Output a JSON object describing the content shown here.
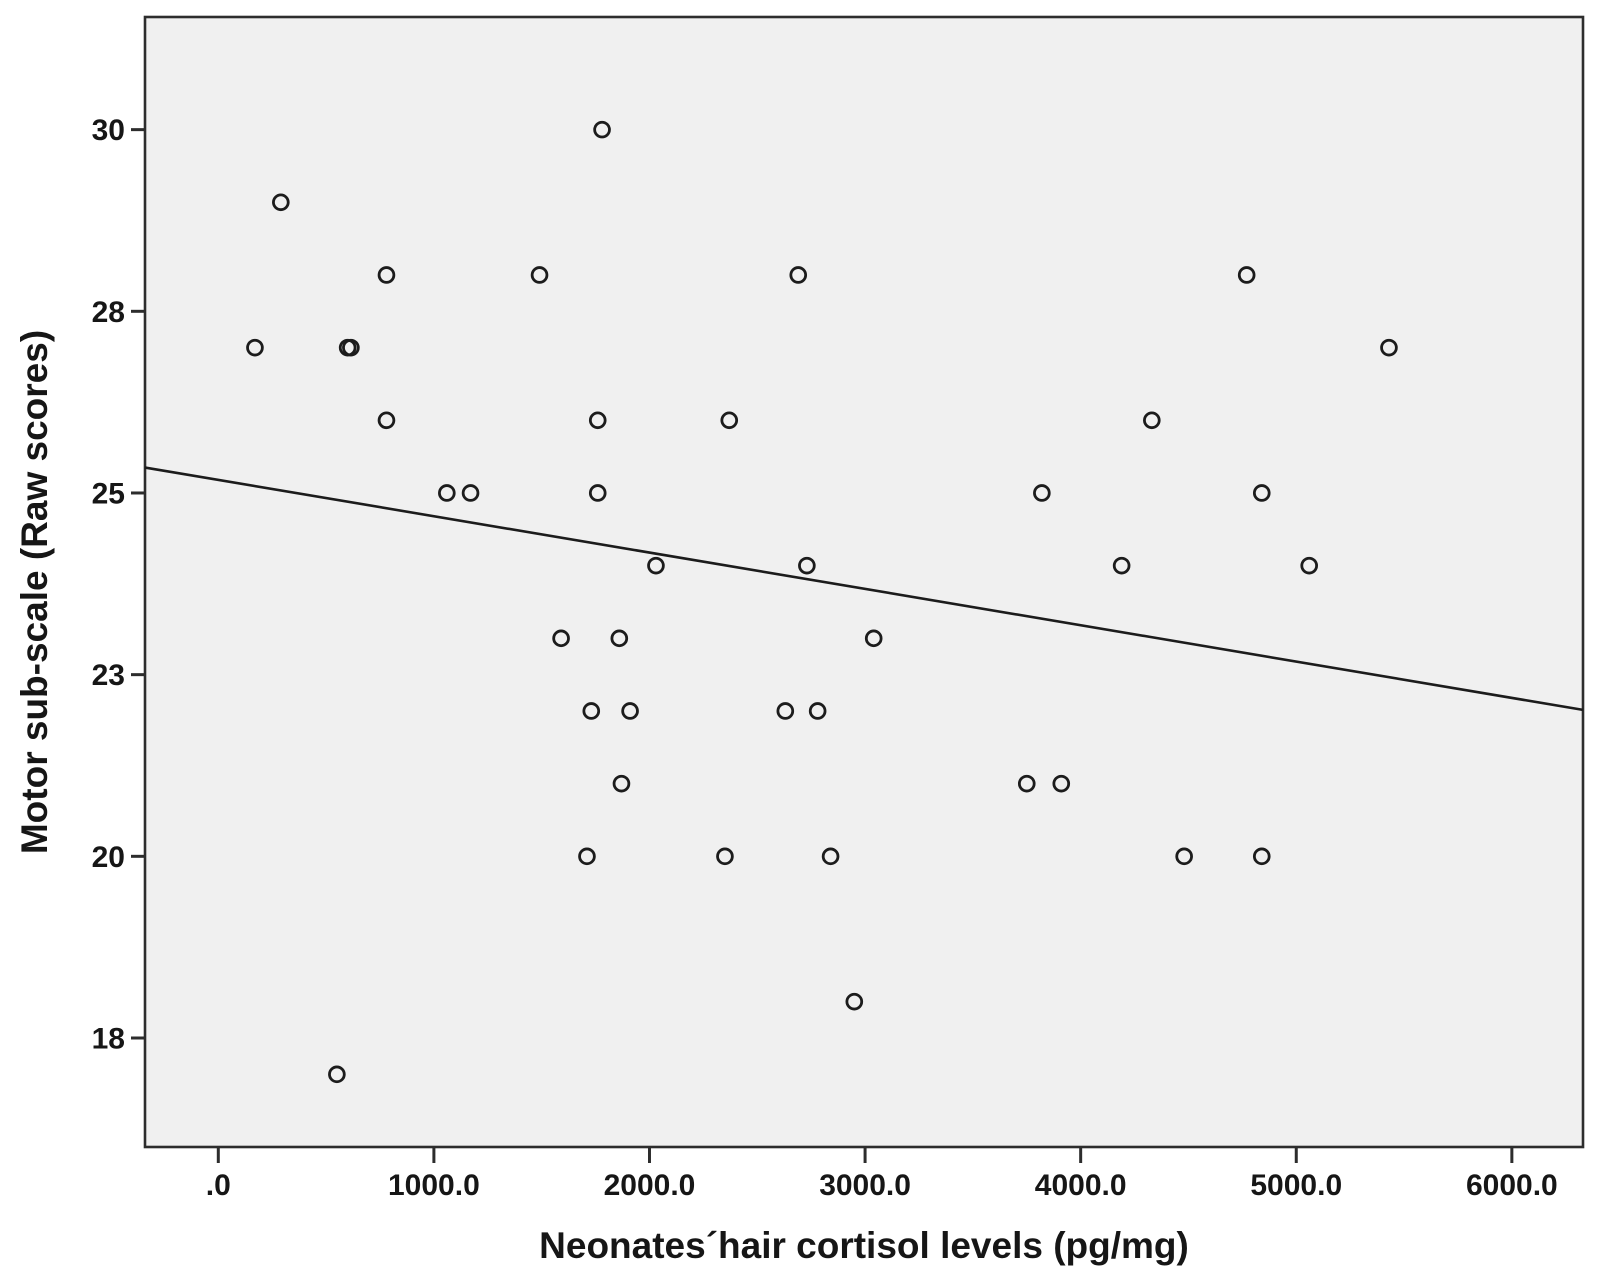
{
  "figure": {
    "background_color": "#ffffff",
    "plot_background_color": "#f0f0f0",
    "border_color": "#2d2d2d",
    "tick_color": "#2d2d2d",
    "text_color": "#161616",
    "point_stroke_color": "#1c1c1c",
    "fit_line_color": "#1c1c1c"
  },
  "chart_data": {
    "type": "scatter",
    "title": "",
    "xlabel": "Neonates´hair cortisol levels (pg/mg)",
    "ylabel": "Motor sub-scale (Raw scores)",
    "xlim": [
      -340,
      6330
    ],
    "ylim": [
      16.0,
      31.55
    ],
    "grid": false,
    "legend": false,
    "x_ticks": [
      {
        "label": ".0",
        "value": 0
      },
      {
        "label": "1000.0",
        "value": 1000
      },
      {
        "label": "2000.0",
        "value": 2000
      },
      {
        "label": "3000.0",
        "value": 3000
      },
      {
        "label": "4000.0",
        "value": 4000
      },
      {
        "label": "5000.0",
        "value": 5000
      },
      {
        "label": "6000.0",
        "value": 6000
      }
    ],
    "y_ticks": [
      {
        "label": "30",
        "value": 30
      },
      {
        "label": "28",
        "value": 27.5
      },
      {
        "label": "25",
        "value": 25
      },
      {
        "label": "23",
        "value": 22.5
      },
      {
        "label": "20",
        "value": 20
      },
      {
        "label": "18",
        "value": 17.5
      }
    ],
    "points": [
      {
        "x": 1780,
        "y": 30
      },
      {
        "x": 290,
        "y": 29
      },
      {
        "x": 780,
        "y": 28
      },
      {
        "x": 1490,
        "y": 28
      },
      {
        "x": 2690,
        "y": 28
      },
      {
        "x": 4770,
        "y": 28
      },
      {
        "x": 170,
        "y": 27
      },
      {
        "x": 600,
        "y": 27
      },
      {
        "x": 615,
        "y": 27
      },
      {
        "x": 5430,
        "y": 27
      },
      {
        "x": 780,
        "y": 26
      },
      {
        "x": 1760,
        "y": 26
      },
      {
        "x": 2370,
        "y": 26
      },
      {
        "x": 4330,
        "y": 26
      },
      {
        "x": 1060,
        "y": 25
      },
      {
        "x": 1170,
        "y": 25
      },
      {
        "x": 1760,
        "y": 25
      },
      {
        "x": 3820,
        "y": 25
      },
      {
        "x": 4840,
        "y": 25
      },
      {
        "x": 2030,
        "y": 24
      },
      {
        "x": 2730,
        "y": 24
      },
      {
        "x": 4190,
        "y": 24
      },
      {
        "x": 5060,
        "y": 24
      },
      {
        "x": 1590,
        "y": 23
      },
      {
        "x": 1860,
        "y": 23
      },
      {
        "x": 3040,
        "y": 23
      },
      {
        "x": 1730,
        "y": 22
      },
      {
        "x": 1910,
        "y": 22
      },
      {
        "x": 2630,
        "y": 22
      },
      {
        "x": 2780,
        "y": 22
      },
      {
        "x": 1870,
        "y": 21
      },
      {
        "x": 3750,
        "y": 21
      },
      {
        "x": 3910,
        "y": 21
      },
      {
        "x": 1710,
        "y": 20
      },
      {
        "x": 2350,
        "y": 20
      },
      {
        "x": 2840,
        "y": 20
      },
      {
        "x": 4480,
        "y": 20
      },
      {
        "x": 4840,
        "y": 20
      },
      {
        "x": 2950,
        "y": 18
      },
      {
        "x": 550,
        "y": 17
      }
    ],
    "fit_line": {
      "intercept": 25.18,
      "slope": -0.0005
    }
  }
}
